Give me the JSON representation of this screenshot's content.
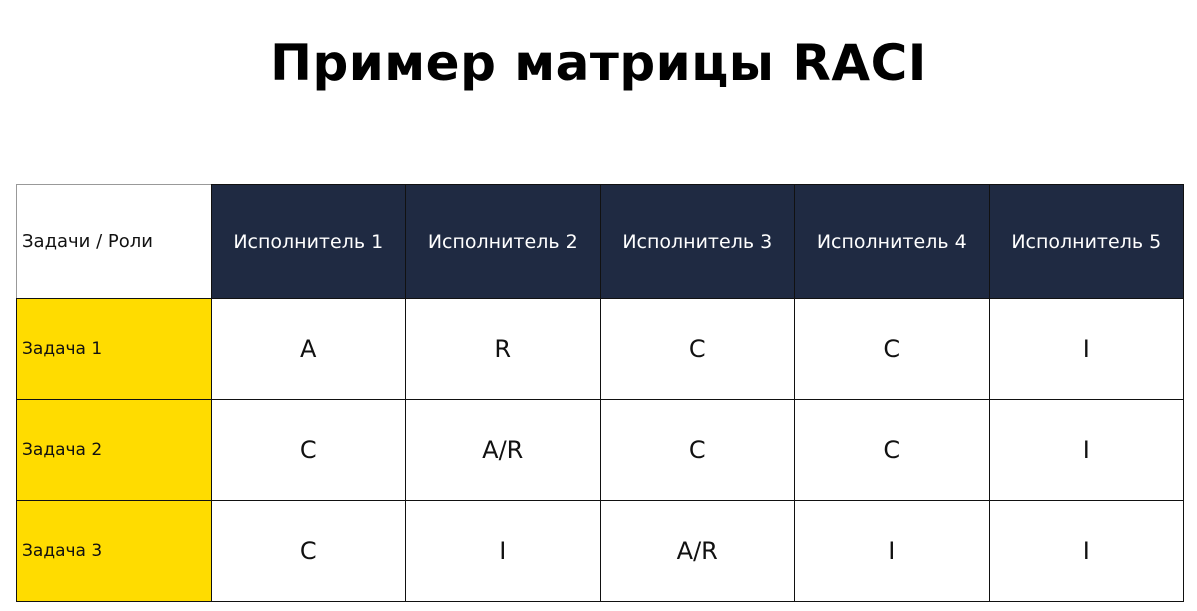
{
  "title": "Пример матрицы RACI",
  "table": {
    "corner": "Задачи / Роли",
    "roles": [
      "Исполнитель 1",
      "Исполнитель 2",
      "Исполнитель 3",
      "Исполнитель 4",
      "Исполнитель 5"
    ],
    "rows": [
      {
        "task": "Задача 1",
        "values": [
          "A",
          "R",
          "C",
          "C",
          "I"
        ]
      },
      {
        "task": "Задача 2",
        "values": [
          "C",
          "A/R",
          "C",
          "C",
          "I"
        ]
      },
      {
        "task": "Задача 3",
        "values": [
          "C",
          "I",
          "A/R",
          "I",
          "I"
        ]
      }
    ]
  },
  "colors": {
    "header": "#1F2A42",
    "task_highlight": "#FFDC00"
  }
}
